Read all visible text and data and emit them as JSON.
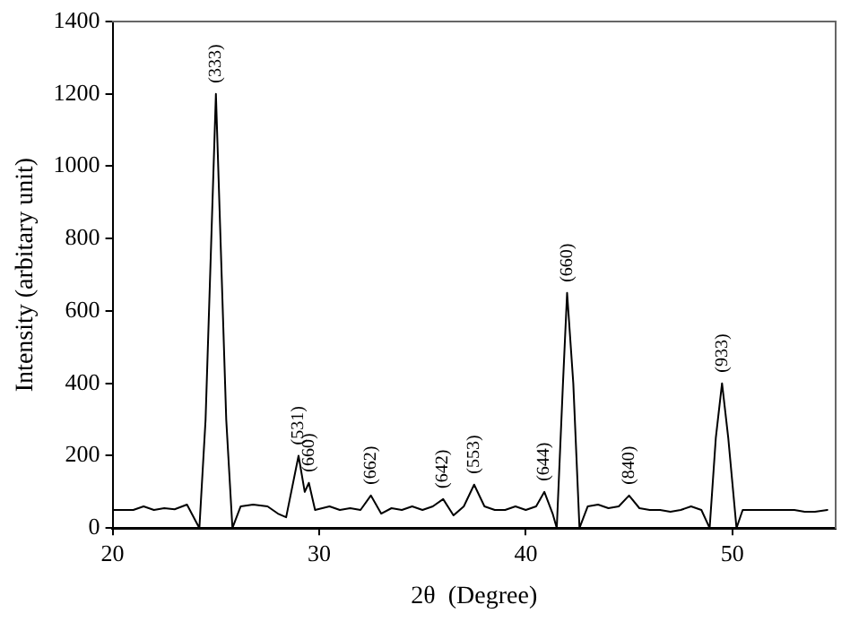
{
  "chart_data": {
    "type": "line",
    "xlabel": "2θ  (Degree)",
    "ylabel": "Intensity (arbitary unit)",
    "xlim": [
      20,
      55
    ],
    "xticks": [
      20,
      30,
      40,
      50
    ],
    "ylim": [
      0,
      1400
    ],
    "yticks": [
      0,
      200,
      400,
      600,
      800,
      1000,
      1200,
      1400
    ],
    "grid": false,
    "legend": false,
    "marker": "none",
    "line_style": "solid",
    "series": [
      {
        "color": "#000000",
        "x": [
          20,
          21,
          21.5,
          22,
          22.5,
          23,
          23.6,
          24.2,
          24.5,
          25,
          25.5,
          25.8,
          26.2,
          26.8,
          27.5,
          28,
          28.4,
          29,
          29.3,
          29.5,
          29.8,
          30.5,
          31,
          31.5,
          32,
          32.5,
          33,
          33.5,
          34,
          34.5,
          35,
          35.5,
          36,
          36.5,
          37,
          37.5,
          38,
          38.5,
          39,
          39.5,
          40,
          40.5,
          40.9,
          41.3,
          41.5,
          41.8,
          42,
          42.3,
          42.6,
          43,
          43.5,
          44,
          44.5,
          45,
          45.5,
          46,
          46.5,
          47,
          47.5,
          48,
          48.5,
          48.9,
          49.2,
          49.5,
          49.8,
          50.2,
          50.5,
          51,
          51.5,
          52,
          52.5,
          53,
          53.5,
          54,
          54.6
        ],
        "values": [
          50,
          50,
          60,
          50,
          55,
          52,
          65,
          0,
          300,
          1200,
          300,
          0,
          60,
          65,
          60,
          40,
          30,
          200,
          100,
          125,
          50,
          60,
          50,
          55,
          50,
          90,
          40,
          55,
          50,
          60,
          50,
          60,
          80,
          35,
          60,
          120,
          60,
          50,
          50,
          60,
          50,
          60,
          100,
          40,
          0,
          400,
          650,
          400,
          0,
          60,
          65,
          55,
          60,
          90,
          55,
          50,
          50,
          45,
          50,
          60,
          50,
          0,
          250,
          400,
          250,
          0,
          50,
          50,
          50,
          50,
          50,
          50,
          45,
          45,
          50
        ]
      }
    ],
    "annotations": [
      {
        "text": "(333)",
        "x": 25,
        "y": 1200
      },
      {
        "text": "(531)",
        "x": 29,
        "y": 200
      },
      {
        "text": "(660)",
        "x": 29.5,
        "y": 125
      },
      {
        "text": "(662)",
        "x": 32.5,
        "y": 90
      },
      {
        "text": "(642)",
        "x": 36,
        "y": 80
      },
      {
        "text": "(553)",
        "x": 37.5,
        "y": 120
      },
      {
        "text": "(644)",
        "x": 40.9,
        "y": 100
      },
      {
        "text": "(660)",
        "x": 42,
        "y": 650
      },
      {
        "text": "(840)",
        "x": 45,
        "y": 90
      },
      {
        "text": "(933)",
        "x": 49.5,
        "y": 400
      }
    ]
  }
}
